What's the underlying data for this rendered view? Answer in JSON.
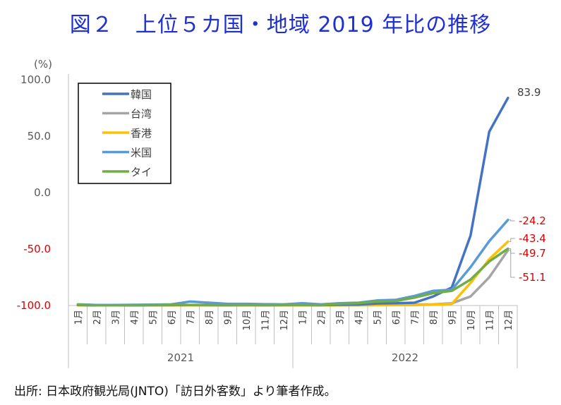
{
  "title": "図２　上位５カ国・地域 2019 年比の推移",
  "source": "出所:  日本政府観光局(JNTO)「訪日外客数」より筆者作成。",
  "chart_data": {
    "type": "line",
    "ylabel": "(%)",
    "ylim": [
      -100,
      100
    ],
    "yticks": [
      {
        "v": 100,
        "label": "100.0",
        "color": "#595959"
      },
      {
        "v": 50,
        "label": "50.0",
        "color": "#595959"
      },
      {
        "v": 0,
        "label": "0.0",
        "color": "#595959"
      },
      {
        "v": -50,
        "label": "-50.0",
        "color": "#e00000"
      },
      {
        "v": -100,
        "label": "-100.0",
        "color": "#e00000"
      }
    ],
    "categories": [
      "1月",
      "2月",
      "3月",
      "4月",
      "5月",
      "6月",
      "7月",
      "8月",
      "9月",
      "10月",
      "11月",
      "12月",
      "1月",
      "2月",
      "3月",
      "4月",
      "5月",
      "6月",
      "7月",
      "8月",
      "9月",
      "10月",
      "11月",
      "12月"
    ],
    "years": [
      {
        "label": "2021",
        "from": 0,
        "to": 11
      },
      {
        "label": "2022",
        "from": 12,
        "to": 23
      }
    ],
    "legend_position": "top-left",
    "series": [
      {
        "name": "韓国",
        "color": "#4472c4",
        "values": [
          -99.5,
          -99.9,
          -99.8,
          -99.8,
          -99.7,
          -99.6,
          -99.5,
          -99.6,
          -99.7,
          -99.6,
          -99.7,
          -99.6,
          -99.5,
          -99.7,
          -99.3,
          -99.1,
          -98.2,
          -98,
          -97.5,
          -92,
          -84,
          -38,
          54,
          83.9
        ]
      },
      {
        "name": "台湾",
        "color": "#a5a5a5",
        "values": [
          -99.7,
          -99.9,
          -99.9,
          -99.8,
          -99.9,
          -99.9,
          -99.8,
          -99.8,
          -99.9,
          -99.8,
          -99.8,
          -99.7,
          -99.7,
          -99.8,
          -99.6,
          -99.5,
          -99.3,
          -99.2,
          -99.1,
          -99,
          -98,
          -92,
          -75,
          -51.1
        ]
      },
      {
        "name": "香港",
        "color": "#ffc000",
        "values": [
          -99.9,
          -99.9,
          -99.9,
          -99.9,
          -99.9,
          -99.9,
          -99.9,
          -99.9,
          -99.9,
          -99.9,
          -99.9,
          -99.9,
          -99.9,
          -99.9,
          -99.8,
          -99.8,
          -99.7,
          -99.6,
          -99.6,
          -99.3,
          -98.5,
          -80,
          -59,
          -43.4
        ]
      },
      {
        "name": "米国",
        "color": "#5b9bd5",
        "values": [
          -99,
          -99.5,
          -99.5,
          -99.4,
          -99.2,
          -99,
          -96.5,
          -97.5,
          -98.5,
          -98.5,
          -98.8,
          -99,
          -98,
          -99,
          -98,
          -97.5,
          -95.5,
          -95,
          -91.5,
          -87,
          -86,
          -66,
          -43,
          -24.2
        ]
      },
      {
        "name": "タイ",
        "color": "#70ad47",
        "values": [
          -99.3,
          -99.8,
          -99.8,
          -99.7,
          -99.6,
          -99.4,
          -99.5,
          -99.6,
          -99.7,
          -99.6,
          -99.6,
          -99.5,
          -99.6,
          -99.7,
          -98.5,
          -98,
          -96.5,
          -96,
          -93,
          -89,
          -87,
          -77,
          -61,
          -49.7
        ]
      }
    ],
    "end_labels": [
      {
        "series": "韓国",
        "text": "83.9",
        "color": "#404040"
      },
      {
        "series": "米国",
        "text": "-24.2",
        "color": "#e00000"
      },
      {
        "series": "香港",
        "text": "-43.4",
        "color": "#e00000"
      },
      {
        "series": "タイ",
        "text": "-49.7",
        "color": "#e00000"
      },
      {
        "series": "台湾",
        "text": "-51.1",
        "color": "#e00000"
      }
    ]
  }
}
